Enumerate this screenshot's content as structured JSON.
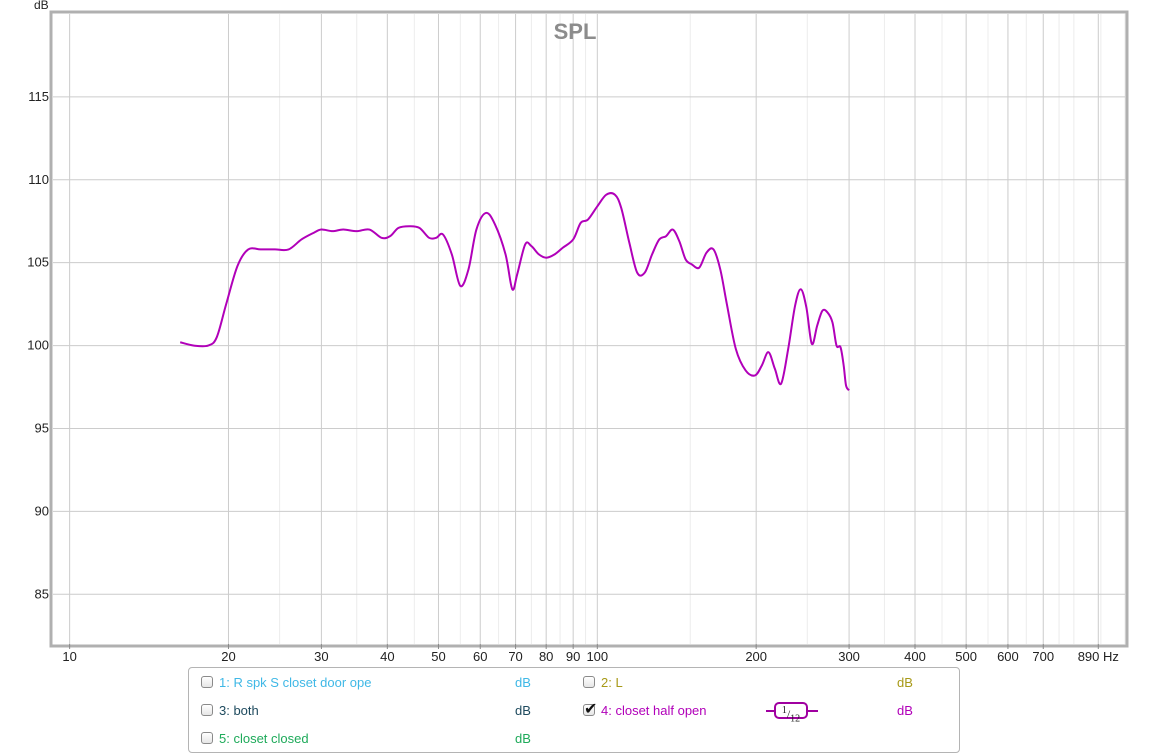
{
  "chart_data": {
    "type": "line",
    "title": "SPL",
    "ylabel": "dB",
    "xlabel": "Hz",
    "x_scale": "log",
    "xlim": [
      9.3,
      1000
    ],
    "ylim": [
      82,
      120
    ],
    "y_ticks": [
      85,
      90,
      95,
      100,
      105,
      110,
      115
    ],
    "y_tick_labels": [
      "85",
      "90",
      "95",
      "100",
      "105",
      "110",
      "115"
    ],
    "x_major_ticks": [
      10,
      20,
      30,
      40,
      50,
      60,
      70,
      80,
      90,
      100,
      200,
      300,
      400,
      500,
      600,
      700,
      890
    ],
    "x_major_labels": [
      "10",
      "20",
      "30",
      "40",
      "50",
      "60",
      "70",
      "80",
      "90",
      "100",
      "200",
      "300",
      "400",
      "500",
      "600",
      "700",
      "890 Hz"
    ],
    "x_minor_ticks": [
      25,
      35,
      45,
      55,
      65,
      75,
      85,
      95,
      150,
      250,
      350,
      450,
      550,
      650,
      750,
      800,
      900,
      1000
    ],
    "grid": true,
    "series": [
      {
        "name": "4: closet half open",
        "color": "#b100b9",
        "x": [
          16.2,
          17.2,
          18.3,
          19.0,
          19.8,
          20.8,
          21.8,
          23.0,
          24.5,
          26.0,
          27.5,
          29.0,
          30.0,
          31.5,
          33.0,
          35.0,
          37.0,
          39.0,
          40.5,
          42.0,
          44.0,
          46.0,
          48.0,
          49.5,
          51.0,
          53.0,
          55.0,
          57.0,
          59.0,
          61.5,
          64.0,
          67.0,
          69.0,
          70.5,
          73.0,
          75.0,
          77.5,
          80.0,
          83.0,
          86.0,
          90.0,
          93.0,
          96.0,
          100.0,
          104.0,
          108.0,
          111.0,
          115.0,
          119.0,
          123.0,
          127.0,
          131.0,
          135.0,
          139.0,
          143.0,
          147.0,
          151.0,
          156.0,
          161.0,
          166.0,
          171.0,
          176.0,
          183.0,
          191.0,
          199.0,
          205.0,
          211.0,
          217.0,
          223.0,
          230.0,
          237.0,
          243.0,
          249.0,
          255.0,
          261.0,
          267.0,
          273.0,
          279.0,
          284.0,
          289.0,
          293.0,
          296.0,
          300.0
        ],
        "y": [
          100.2,
          100.0,
          100.0,
          100.5,
          102.5,
          104.8,
          105.8,
          105.8,
          105.8,
          105.8,
          106.4,
          106.8,
          107.0,
          106.9,
          107.0,
          106.9,
          107.0,
          106.5,
          106.6,
          107.1,
          107.2,
          107.1,
          106.5,
          106.5,
          106.7,
          105.5,
          103.6,
          104.6,
          107.0,
          108.0,
          107.3,
          105.5,
          103.4,
          104.3,
          106.1,
          106.0,
          105.5,
          105.3,
          105.5,
          105.9,
          106.4,
          107.4,
          107.6,
          108.4,
          109.1,
          109.1,
          108.3,
          106.2,
          104.4,
          104.4,
          105.5,
          106.4,
          106.6,
          107.0,
          106.3,
          105.2,
          104.9,
          104.7,
          105.6,
          105.8,
          104.6,
          102.5,
          99.8,
          98.5,
          98.2,
          98.8,
          99.6,
          98.6,
          97.7,
          99.8,
          102.4,
          103.4,
          102.3,
          100.1,
          101.2,
          102.1,
          102.0,
          101.4,
          100.0,
          99.9,
          98.8,
          97.6,
          97.3
        ]
      }
    ]
  },
  "legend": {
    "items": [
      {
        "label": "1: R spk S closet door ope",
        "unit": "dB",
        "color": "#3fb8e6",
        "checked": false
      },
      {
        "label": "2: L",
        "unit": "dB",
        "color": "#a89a18",
        "checked": false
      },
      {
        "label": "3: both",
        "unit": "dB",
        "color": "#1e4a5e",
        "checked": false
      },
      {
        "label": "4: closet half open",
        "unit": "dB",
        "color": "#b100b9",
        "checked": true
      },
      {
        "label": "5: closet closed",
        "unit": "dB",
        "color": "#1eaa5a",
        "checked": false
      }
    ],
    "smoothing": {
      "numerator": "1",
      "denominator": "12"
    }
  }
}
